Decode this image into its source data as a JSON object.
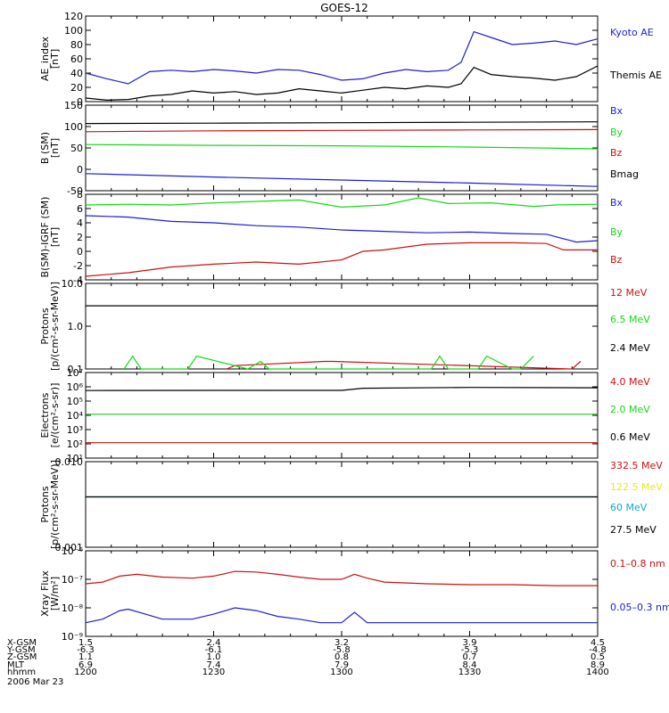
{
  "title": "GOES-12",
  "colors": {
    "black": "#000000",
    "blue": "#1c1cd8",
    "green": "#16d816",
    "red": "#cc1010",
    "cyan": "#10a8d8",
    "yellow": "#e8e820"
  },
  "chart_data": [
    {
      "type": "line",
      "ylabel": [
        "AE_index",
        "[nT]"
      ],
      "ylim": [
        0,
        120
      ],
      "yscale": "linear",
      "yticks": [
        0,
        20,
        40,
        60,
        80,
        100,
        120
      ],
      "series": [
        {
          "name": "Kyoto AE",
          "color": "blue",
          "x": [
            0,
            5,
            10,
            15,
            20,
            25,
            30,
            35,
            40,
            45,
            50,
            55,
            60,
            65,
            70,
            75,
            80,
            85,
            88,
            91,
            95,
            100,
            105,
            110,
            115,
            120
          ],
          "values": [
            40,
            32,
            25,
            42,
            44,
            42,
            45,
            43,
            40,
            45,
            44,
            38,
            30,
            32,
            40,
            45,
            42,
            44,
            55,
            98,
            90,
            80,
            82,
            85,
            80,
            88
          ]
        },
        {
          "name": "Themis AE",
          "color": "black",
          "x": [
            0,
            5,
            10,
            15,
            20,
            25,
            30,
            35,
            40,
            45,
            50,
            55,
            60,
            65,
            70,
            75,
            80,
            85,
            88,
            91,
            95,
            100,
            105,
            110,
            115,
            120
          ],
          "values": [
            5,
            2,
            3,
            8,
            10,
            15,
            12,
            14,
            10,
            12,
            18,
            15,
            12,
            16,
            20,
            18,
            22,
            20,
            25,
            48,
            38,
            35,
            33,
            30,
            35,
            50
          ]
        }
      ]
    },
    {
      "type": "line",
      "ylabel": [
        "B (SM)",
        "[nT]"
      ],
      "ylim": [
        -50,
        150
      ],
      "yscale": "linear",
      "yticks": [
        -50,
        0,
        50,
        100,
        150
      ],
      "series": [
        {
          "name": "Bx",
          "color": "blue",
          "x": [
            0,
            30,
            60,
            90,
            120
          ],
          "values": [
            -10,
            -18,
            -25,
            -32,
            -40
          ]
        },
        {
          "name": "By",
          "color": "green",
          "x": [
            0,
            30,
            60,
            90,
            120
          ],
          "values": [
            58,
            56,
            55,
            52,
            48
          ]
        },
        {
          "name": "Bz",
          "color": "red",
          "x": [
            0,
            30,
            60,
            90,
            120
          ],
          "values": [
            88,
            90,
            91,
            92,
            93
          ]
        },
        {
          "name": "Bmag",
          "color": "black",
          "x": [
            0,
            30,
            60,
            90,
            120
          ],
          "values": [
            107,
            108,
            109,
            110,
            111
          ]
        }
      ]
    },
    {
      "type": "line",
      "ylabel": [
        "B(SM)-IGRF (SM)",
        "[nT]"
      ],
      "ylim": [
        -4,
        8
      ],
      "yscale": "linear",
      "yticks": [
        -4,
        -2,
        0,
        2,
        4,
        6,
        8
      ],
      "series": [
        {
          "name": "Bx",
          "color": "blue",
          "x": [
            0,
            10,
            20,
            30,
            40,
            50,
            60,
            70,
            80,
            90,
            100,
            108,
            115,
            120
          ],
          "values": [
            5,
            4.8,
            4.2,
            4,
            3.6,
            3.4,
            3,
            2.8,
            2.6,
            2.7,
            2.5,
            2.4,
            1.3,
            1.5
          ]
        },
        {
          "name": "By",
          "color": "green",
          "x": [
            0,
            10,
            20,
            30,
            40,
            50,
            60,
            70,
            78,
            85,
            95,
            105,
            110,
            120
          ],
          "values": [
            6.5,
            6.6,
            6.5,
            6.8,
            7,
            7.2,
            6.2,
            6.5,
            7.5,
            6.7,
            6.8,
            6.3,
            6.5,
            6.6
          ]
        },
        {
          "name": "Bz",
          "color": "red",
          "x": [
            0,
            10,
            20,
            30,
            40,
            50,
            60,
            65,
            70,
            80,
            90,
            100,
            108,
            112,
            120
          ],
          "values": [
            -3.5,
            -3,
            -2.2,
            -1.8,
            -1.5,
            -1.8,
            -1.2,
            0,
            0.2,
            1,
            1.2,
            1.2,
            1.1,
            0.2,
            0.2
          ]
        }
      ]
    },
    {
      "type": "line",
      "ylabel": [
        "Protons",
        "[p/(cm²-s-sr-MeV)]"
      ],
      "ylim": [
        0.1,
        10
      ],
      "yscale": "log",
      "ytick_labels": [
        "0.1",
        "1.0",
        "10.0"
      ],
      "series": [
        {
          "name": "12 MeV",
          "color": "red",
          "x": [
            33,
            35,
            56,
            58,
            114,
            116
          ],
          "values": [
            0.1,
            0.12,
            0.15,
            0.15,
            0.1,
            0.15
          ]
        },
        {
          "name": "6.5 MeV",
          "color": "green",
          "x": [
            9,
            11,
            13,
            24,
            26,
            38,
            41,
            43,
            44,
            49,
            52,
            81,
            83,
            85,
            92,
            94,
            100,
            102,
            105
          ],
          "values": [
            0.1,
            0.2,
            0.1,
            0.1,
            0.2,
            0.1,
            0.15,
            0.1,
            0.1,
            0.1,
            0.1,
            0.1,
            0.2,
            0.1,
            0.1,
            0.2,
            0.1,
            0.1,
            0.2
          ]
        },
        {
          "name": "2.4 MeV",
          "color": "black",
          "x": [
            0,
            120
          ],
          "values": [
            3,
            3
          ]
        }
      ]
    },
    {
      "type": "line",
      "ylabel": [
        "Electrons",
        "[e/(cm²-s-sr)]"
      ],
      "ylim": [
        10,
        10000000
      ],
      "yscale": "log",
      "ytick_labels": [
        "10¹",
        "10²",
        "10³",
        "10⁴",
        "10⁵",
        "10⁶",
        "10⁷"
      ],
      "series": [
        {
          "name": "4.0 MeV",
          "color": "red",
          "x": [
            0,
            120
          ],
          "values": [
            120,
            120
          ]
        },
        {
          "name": "2.0 MeV",
          "color": "green",
          "x": [
            0,
            120
          ],
          "values": [
            12000,
            12000
          ]
        },
        {
          "name": "0.6 MeV",
          "color": "black",
          "x": [
            0,
            30,
            60,
            65,
            90,
            120
          ],
          "values": [
            550000,
            560000,
            560000,
            800000,
            900000,
            850000
          ]
        }
      ]
    },
    {
      "type": "line",
      "ylabel": [
        "Protons",
        "[p/(cm²-s-sr-MeV)]"
      ],
      "ylim": [
        0.001,
        0.1
      ],
      "yscale": "log",
      "ytick_labels": [
        "0.001",
        "0.010"
      ],
      "series": [
        {
          "name": "332.5 MeV",
          "color": "red",
          "x": [],
          "values": []
        },
        {
          "name": "122.5 MeV",
          "color": "yellow",
          "x": [],
          "values": []
        },
        {
          "name": "60 MeV",
          "color": "cyan",
          "x": [
            0,
            120
          ],
          "values": [
            0.015,
            0.015
          ]
        },
        {
          "name": "27.5 MeV",
          "color": "black",
          "x": [
            0,
            120
          ],
          "values": [
            0.015,
            0.015
          ]
        }
      ]
    },
    {
      "type": "line",
      "ylabel": [
        "Xray Flux",
        "[W/m²]"
      ],
      "ylim": [
        1e-09,
        1e-06
      ],
      "yscale": "log",
      "ytick_labels": [
        "10⁻⁹",
        "10⁻⁸",
        "10⁻⁷",
        "10⁻⁶"
      ],
      "series": [
        {
          "name": "0.1–0.8 nm",
          "color": "red",
          "x": [
            0,
            4,
            8,
            12,
            18,
            25,
            30,
            35,
            40,
            45,
            50,
            55,
            60,
            63,
            66,
            70,
            80,
            90,
            100,
            110,
            120
          ],
          "values": [
            7e-08,
            8e-08,
            1.3e-07,
            1.5e-07,
            1.2e-07,
            1.1e-07,
            1.3e-07,
            1.9e-07,
            1.8e-07,
            1.5e-07,
            1.2e-07,
            1e-07,
            1e-07,
            1.5e-07,
            1.1e-07,
            8e-08,
            7e-08,
            6.5e-08,
            6.5e-08,
            6e-08,
            6e-08
          ]
        },
        {
          "name": "0.05–0.3 nm",
          "color": "blue",
          "x": [
            0,
            4,
            8,
            10,
            14,
            18,
            25,
            30,
            35,
            40,
            45,
            50,
            55,
            60,
            63,
            66,
            70,
            80,
            90,
            100,
            120
          ],
          "values": [
            3e-09,
            4e-09,
            8e-09,
            9e-09,
            6e-09,
            4e-09,
            4e-09,
            6e-09,
            1e-08,
            8e-09,
            5e-09,
            4e-09,
            3e-09,
            3e-09,
            7e-09,
            3e-09,
            3e-09,
            3e-09,
            3e-09,
            3e-09,
            3e-09
          ]
        }
      ]
    }
  ],
  "xaxis": {
    "row_labels": [
      "X-GSM",
      "Y-GSM",
      "Z-GSM",
      "MLT",
      "hhmm"
    ],
    "date": "2006 Mar 23",
    "ticks": [
      {
        "t": 0,
        "values": [
          "1.5",
          "-6.3",
          "1.1",
          "6.9",
          "1200"
        ]
      },
      {
        "t": 30,
        "values": [
          "2.4",
          "-6.1",
          "1.0",
          "7.4",
          "1230"
        ]
      },
      {
        "t": 60,
        "values": [
          "3.2",
          "-5.8",
          "0.8",
          "7.9",
          "1300"
        ]
      },
      {
        "t": 90,
        "values": [
          "3.9",
          "-5.3",
          "0.7",
          "8.4",
          "1330"
        ]
      },
      {
        "t": 120,
        "values": [
          "4.5",
          "-4.8",
          "0.5",
          "8.9",
          "1400"
        ]
      }
    ]
  }
}
